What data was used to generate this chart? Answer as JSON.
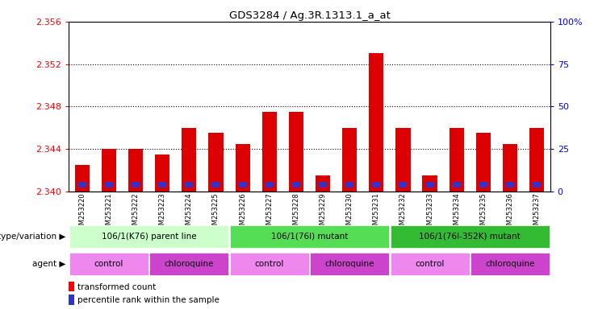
{
  "title": "GDS3284 / Ag.3R.1313.1_a_at",
  "samples": [
    "GSM253220",
    "GSM253221",
    "GSM253222",
    "GSM253223",
    "GSM253224",
    "GSM253225",
    "GSM253226",
    "GSM253227",
    "GSM253228",
    "GSM253229",
    "GSM253230",
    "GSM253231",
    "GSM253232",
    "GSM253233",
    "GSM253234",
    "GSM253235",
    "GSM253236",
    "GSM253237"
  ],
  "red_values": [
    2.3425,
    2.344,
    2.344,
    2.3435,
    2.346,
    2.3455,
    2.3445,
    2.3475,
    2.3475,
    2.3415,
    2.346,
    2.353,
    2.346,
    2.3415,
    2.346,
    2.3455,
    2.3445,
    2.346
  ],
  "blue_heights": [
    0.0005,
    0.0005,
    0.0005,
    0.0005,
    0.0005,
    0.0005,
    0.0005,
    0.0005,
    0.0005,
    0.0005,
    0.0005,
    0.0005,
    0.0005,
    0.0005,
    0.0005,
    0.0005,
    0.0005,
    0.0005
  ],
  "ymin": 2.34,
  "ymax": 2.356,
  "yticks": [
    2.34,
    2.344,
    2.348,
    2.352,
    2.356
  ],
  "right_ytick_labels": [
    "0",
    "25",
    "50",
    "75",
    "100%"
  ],
  "bar_color": "#dd0000",
  "blue_color": "#3333cc",
  "bar_width": 0.55,
  "geno_data": [
    {
      "start": 0,
      "end": 5,
      "label": "106/1(K76) parent line",
      "color": "#ccffcc"
    },
    {
      "start": 6,
      "end": 11,
      "label": "106/1(76l) mutant",
      "color": "#55dd55"
    },
    {
      "start": 12,
      "end": 17,
      "label": "106/1(76l-352K) mutant",
      "color": "#33bb33"
    }
  ],
  "agent_data": [
    {
      "start": 0,
      "end": 2,
      "label": "control",
      "color": "#ee88ee"
    },
    {
      "start": 3,
      "end": 5,
      "label": "chloroquine",
      "color": "#cc44cc"
    },
    {
      "start": 6,
      "end": 8,
      "label": "control",
      "color": "#ee88ee"
    },
    {
      "start": 9,
      "end": 11,
      "label": "chloroquine",
      "color": "#cc44cc"
    },
    {
      "start": 12,
      "end": 14,
      "label": "control",
      "color": "#ee88ee"
    },
    {
      "start": 15,
      "end": 17,
      "label": "chloroquine",
      "color": "#cc44cc"
    }
  ]
}
